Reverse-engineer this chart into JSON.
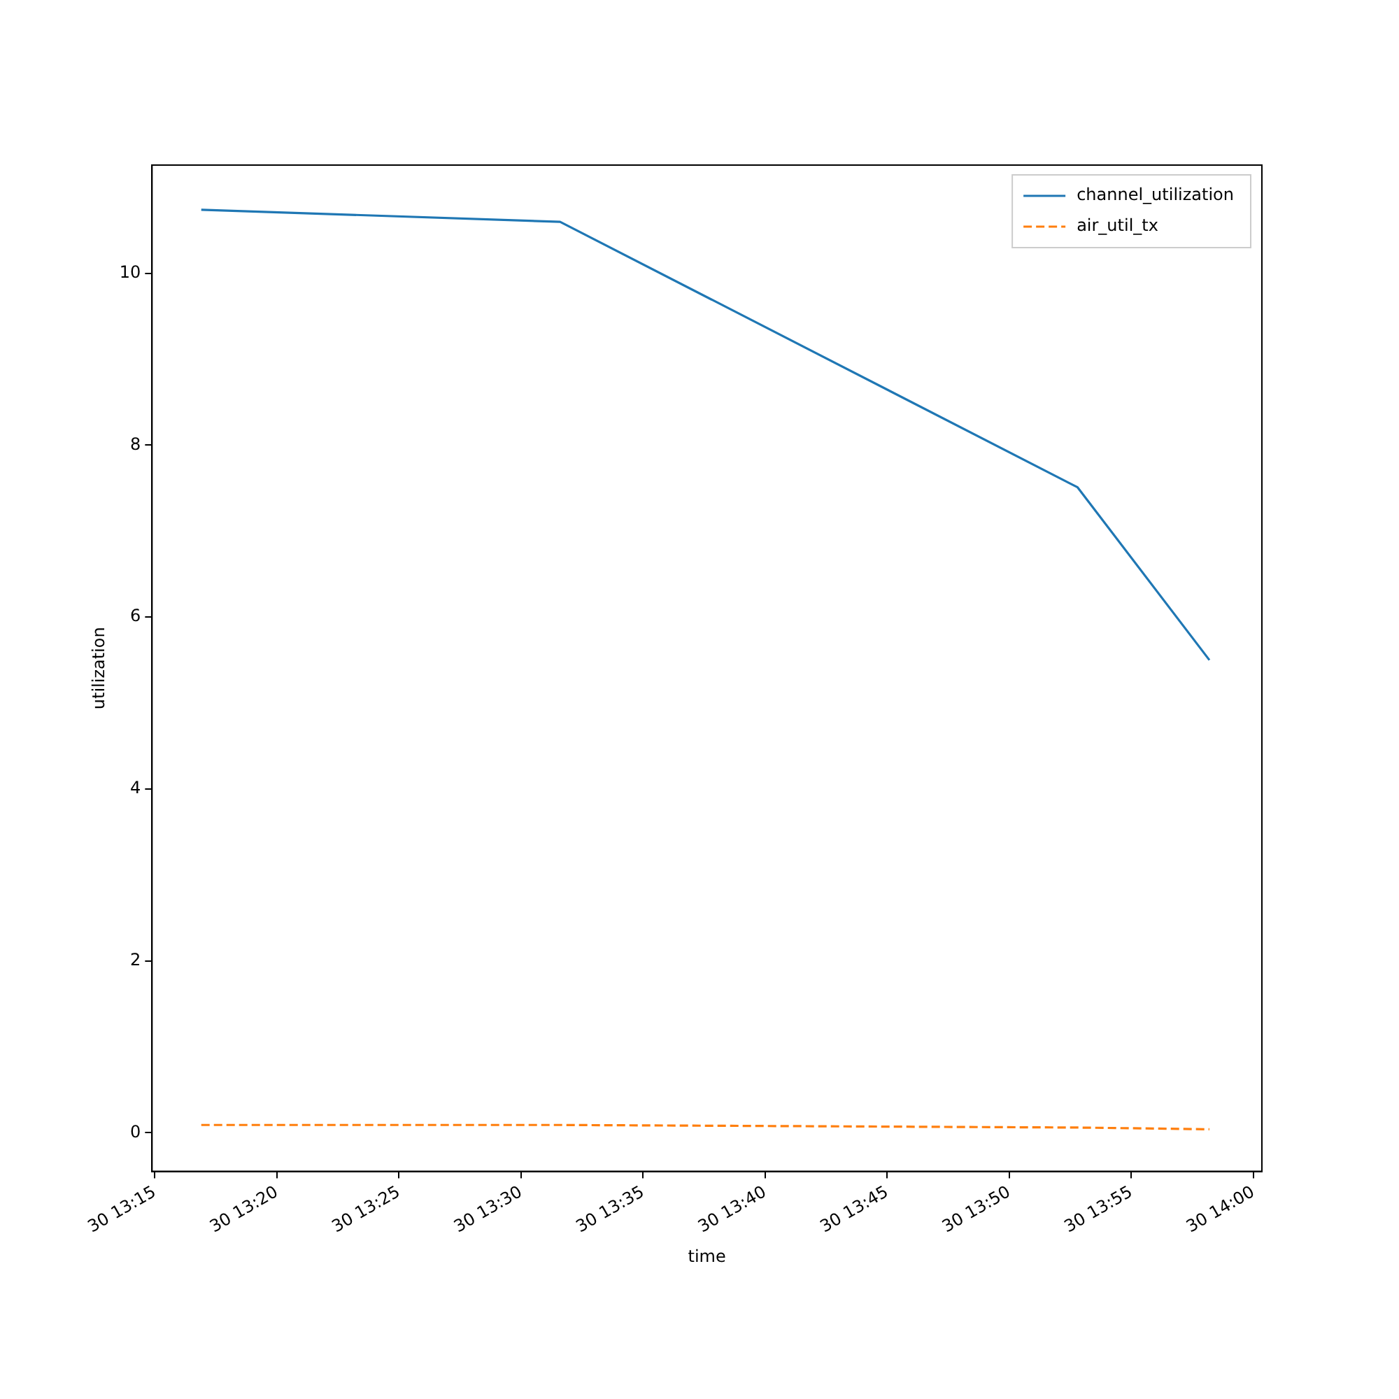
{
  "chart_data": {
    "type": "line",
    "xlabel": "time",
    "ylabel": "utilization",
    "xlim": [
      "--01-30T13:14:53",
      "--01-30T14:00:21"
    ],
    "ylim": [
      -0.45,
      11.26
    ],
    "xticks": [
      {
        "value": "--01-30T13:15",
        "label": "30 13:15"
      },
      {
        "value": "--01-30T13:20",
        "label": "30 13:20"
      },
      {
        "value": "--01-30T13:25",
        "label": "30 13:25"
      },
      {
        "value": "--01-30T13:30",
        "label": "30 13:30"
      },
      {
        "value": "--01-30T13:35",
        "label": "30 13:35"
      },
      {
        "value": "--01-30T13:40",
        "label": "30 13:40"
      },
      {
        "value": "--01-30T13:45",
        "label": "30 13:45"
      },
      {
        "value": "--01-30T13:50",
        "label": "30 13:50"
      },
      {
        "value": "--01-30T13:55",
        "label": "30 13:55"
      },
      {
        "value": "--01-30T14:00",
        "label": "30 14:00"
      }
    ],
    "yticks": [
      0,
      2,
      4,
      6,
      8,
      10
    ],
    "x": [
      "--01-30T13:16:54",
      "--01-30T13:31:36",
      "--01-30T13:52:48",
      "--01-30T13:58:12"
    ],
    "series": [
      {
        "name": "channel_utilization",
        "color": "#1f77b4",
        "line_style": "solid",
        "values": [
          10.74,
          10.6,
          7.51,
          5.5
        ]
      },
      {
        "name": "air_util_tx",
        "color": "#ff7f0e",
        "line_style": "dashed",
        "values": [
          0.09,
          0.09,
          0.06,
          0.04
        ]
      }
    ],
    "legend": "top right",
    "grid": false,
    "marker": "none"
  }
}
